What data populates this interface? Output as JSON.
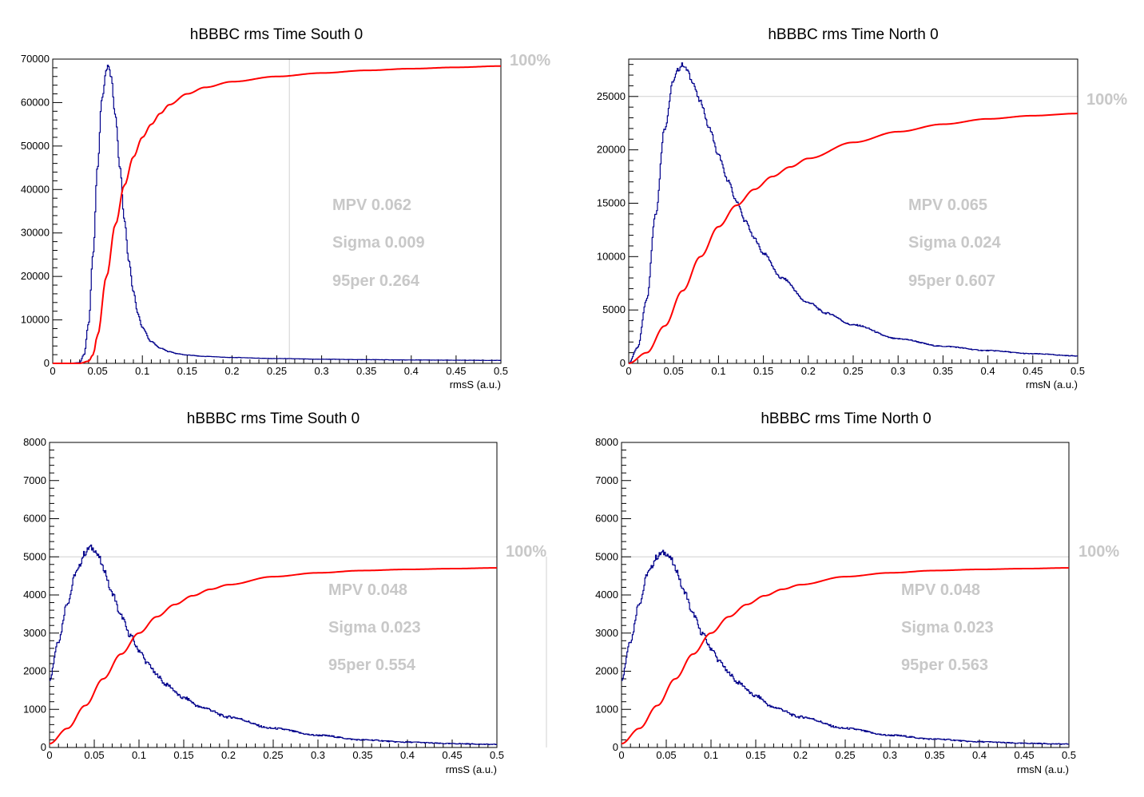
{
  "colors": {
    "histogram": "#00008b",
    "cumulative": "#ff0000",
    "annotation": "#c8c8c8",
    "frame": "#000000",
    "reference": "#d0d0d0"
  },
  "chart_data": [
    {
      "type": "line",
      "title": "hBBBC rms Time South 0",
      "xlabel": "rmsS  (a.u.)",
      "ylabel": "",
      "xlim": [
        0,
        0.5
      ],
      "ylim": [
        0,
        70000
      ],
      "xticks": [
        "0",
        "0.05",
        "0.1",
        "0.15",
        "0.2",
        "0.25",
        "0.3",
        "0.35",
        "0.4",
        "0.45",
        "0.5"
      ],
      "yticks": [
        "0",
        "10000",
        "20000",
        "30000",
        "40000",
        "50000",
        "60000",
        "70000"
      ],
      "ytick_values": [
        0,
        10000,
        20000,
        30000,
        40000,
        50000,
        60000,
        70000
      ],
      "stats": [
        "MPV  0.062",
        "Sigma  0.009",
        "95per  0.264"
      ],
      "percent_label": "100%",
      "reference_y": 70000,
      "reference_x": 0.264,
      "series": [
        {
          "values_x": [
            0.0,
            0.02,
            0.03,
            0.035,
            0.04,
            0.045,
            0.05,
            0.055,
            0.06,
            0.062,
            0.065,
            0.07,
            0.075,
            0.08,
            0.085,
            0.09,
            0.095,
            0.1,
            0.11,
            0.12,
            0.13,
            0.14,
            0.15,
            0.17,
            0.2,
            0.25,
            0.3,
            0.35,
            0.4,
            0.45,
            0.5
          ],
          "values_y": [
            0,
            0,
            200,
            2000,
            9000,
            25000,
            45000,
            61000,
            67500,
            68500,
            66000,
            57000,
            45000,
            33000,
            23500,
            16500,
            11500,
            8200,
            5000,
            3500,
            2700,
            2200,
            1900,
            1600,
            1350,
            1100,
            950,
            850,
            780,
            720,
            680
          ]
        },
        {
          "values_x": [
            0.0,
            0.03,
            0.04,
            0.045,
            0.05,
            0.06,
            0.07,
            0.08,
            0.09,
            0.1,
            0.11,
            0.12,
            0.13,
            0.15,
            0.17,
            0.2,
            0.25,
            0.3,
            0.35,
            0.4,
            0.45,
            0.5
          ],
          "values_y": [
            0,
            0,
            500,
            2000,
            6500,
            20000,
            32000,
            41000,
            47500,
            52000,
            55000,
            57500,
            59500,
            62000,
            63500,
            64800,
            66000,
            66800,
            67400,
            67800,
            68100,
            68400
          ]
        }
      ]
    },
    {
      "type": "line",
      "title": "hBBBC rms Time North 0",
      "xlabel": "rmsN  (a.u.)",
      "ylabel": "",
      "xlim": [
        0,
        0.5
      ],
      "ylim": [
        0,
        28500
      ],
      "xticks": [
        "0",
        "0.05",
        "0.1",
        "0.15",
        "0.2",
        "0.25",
        "0.3",
        "0.35",
        "0.4",
        "0.45",
        "0.5"
      ],
      "yticks": [
        "0",
        "5000",
        "10000",
        "15000",
        "20000",
        "25000"
      ],
      "ytick_values": [
        0,
        5000,
        10000,
        15000,
        20000,
        25000
      ],
      "stats": [
        "MPV  0.065",
        "Sigma  0.024",
        "95per  0.607"
      ],
      "percent_label": "100%",
      "reference_y": 25000,
      "series": [
        {
          "values_x": [
            0.0,
            0.01,
            0.02,
            0.03,
            0.04,
            0.05,
            0.055,
            0.06,
            0.065,
            0.07,
            0.08,
            0.09,
            0.1,
            0.11,
            0.12,
            0.13,
            0.14,
            0.15,
            0.17,
            0.2,
            0.22,
            0.25,
            0.3,
            0.35,
            0.4,
            0.45,
            0.5
          ],
          "values_y": [
            0,
            1500,
            6000,
            14000,
            22000,
            26500,
            27500,
            28000,
            27500,
            26500,
            24500,
            22000,
            19500,
            17200,
            15200,
            13300,
            11700,
            10300,
            8000,
            5700,
            4700,
            3600,
            2300,
            1600,
            1200,
            900,
            700
          ]
        },
        {
          "values_x": [
            0.0,
            0.02,
            0.04,
            0.06,
            0.08,
            0.1,
            0.12,
            0.14,
            0.16,
            0.18,
            0.2,
            0.25,
            0.3,
            0.35,
            0.4,
            0.45,
            0.5
          ],
          "values_y": [
            0,
            1000,
            3500,
            6800,
            10000,
            12800,
            14800,
            16300,
            17500,
            18400,
            19200,
            20700,
            21700,
            22400,
            22900,
            23200,
            23400
          ]
        }
      ]
    },
    {
      "type": "line",
      "title": "hBBBC rms Time South 0",
      "xlabel": "rmsS  (a.u.)",
      "ylabel": "",
      "xlim": [
        0,
        0.5
      ],
      "ylim": [
        0,
        8000
      ],
      "xticks": [
        "0",
        "0.05",
        "0.1",
        "0.15",
        "0.2",
        "0.25",
        "0.3",
        "0.35",
        "0.4",
        "0.45",
        "0.5"
      ],
      "yticks": [
        "0",
        "1000",
        "2000",
        "3000",
        "4000",
        "5000",
        "6000",
        "7000",
        "8000"
      ],
      "ytick_values": [
        0,
        1000,
        2000,
        3000,
        4000,
        5000,
        6000,
        7000,
        8000
      ],
      "stats": [
        "MPV  0.048",
        "Sigma  0.023",
        "95per  0.554"
      ],
      "percent_label": "100%",
      "reference_y": 5000,
      "series": [
        {
          "values_x": [
            0.0,
            0.01,
            0.02,
            0.03,
            0.04,
            0.045,
            0.05,
            0.055,
            0.06,
            0.07,
            0.08,
            0.09,
            0.1,
            0.11,
            0.12,
            0.13,
            0.15,
            0.17,
            0.2,
            0.25,
            0.3,
            0.35,
            0.4,
            0.45,
            0.5
          ],
          "values_y": [
            1800,
            2800,
            3800,
            4600,
            5100,
            5250,
            5200,
            5000,
            4700,
            4050,
            3450,
            2950,
            2550,
            2200,
            1900,
            1650,
            1300,
            1050,
            800,
            500,
            320,
            200,
            140,
            100,
            80
          ]
        },
        {
          "values_x": [
            0.0,
            0.02,
            0.04,
            0.06,
            0.08,
            0.1,
            0.12,
            0.14,
            0.16,
            0.18,
            0.2,
            0.25,
            0.3,
            0.35,
            0.4,
            0.45,
            0.5
          ],
          "values_y": [
            100,
            500,
            1100,
            1800,
            2450,
            3000,
            3430,
            3750,
            3980,
            4150,
            4270,
            4480,
            4580,
            4640,
            4670,
            4690,
            4710
          ]
        }
      ]
    },
    {
      "type": "line",
      "title": "hBBBC rms Time North 0",
      "xlabel": "rmsN  (a.u.)",
      "ylabel": "",
      "xlim": [
        0,
        0.5
      ],
      "ylim": [
        0,
        8000
      ],
      "xticks": [
        "0",
        "0.05",
        "0.1",
        "0.15",
        "0.2",
        "0.25",
        "0.3",
        "0.35",
        "0.4",
        "0.45",
        "0.5"
      ],
      "yticks": [
        "0",
        "1000",
        "2000",
        "3000",
        "4000",
        "5000",
        "6000",
        "7000",
        "8000"
      ],
      "ytick_values": [
        0,
        1000,
        2000,
        3000,
        4000,
        5000,
        6000,
        7000,
        8000
      ],
      "stats": [
        "MPV  0.048",
        "Sigma  0.023",
        "95per  0.563"
      ],
      "percent_label": "100%",
      "reference_y": 5000,
      "series": [
        {
          "values_x": [
            0.0,
            0.01,
            0.02,
            0.03,
            0.04,
            0.045,
            0.05,
            0.055,
            0.06,
            0.07,
            0.08,
            0.09,
            0.1,
            0.11,
            0.12,
            0.13,
            0.15,
            0.17,
            0.2,
            0.25,
            0.3,
            0.35,
            0.4,
            0.45,
            0.5
          ],
          "values_y": [
            1800,
            2800,
            3800,
            4600,
            5000,
            5100,
            5100,
            4950,
            4700,
            4100,
            3500,
            3000,
            2600,
            2250,
            1950,
            1700,
            1350,
            1050,
            800,
            500,
            320,
            220,
            150,
            110,
            90
          ]
        },
        {
          "values_x": [
            0.0,
            0.02,
            0.04,
            0.06,
            0.08,
            0.1,
            0.12,
            0.14,
            0.16,
            0.18,
            0.2,
            0.25,
            0.3,
            0.35,
            0.4,
            0.45,
            0.5
          ],
          "values_y": [
            100,
            500,
            1100,
            1800,
            2450,
            3000,
            3430,
            3750,
            3980,
            4150,
            4270,
            4480,
            4580,
            4640,
            4670,
            4690,
            4710
          ]
        }
      ]
    }
  ]
}
